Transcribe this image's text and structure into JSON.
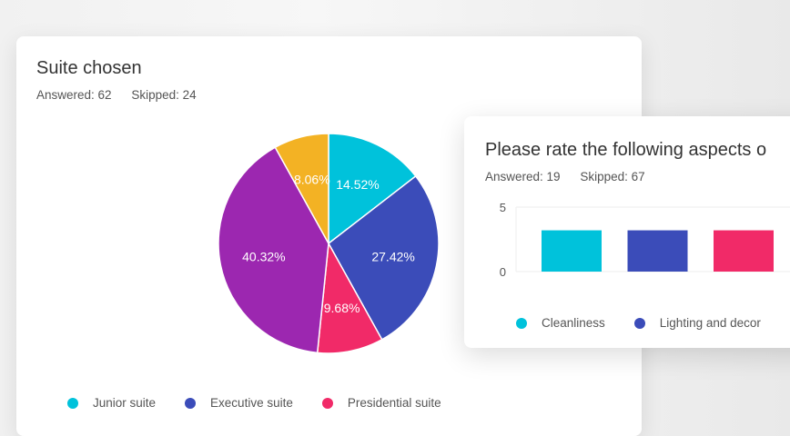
{
  "card1": {
    "title": "Suite chosen",
    "answered": "Answered: 62",
    "skipped": "Skipped: 24",
    "chart_data": {
      "type": "pie",
      "categories": [
        "Junior suite",
        "Executive suite",
        "Presidential suite",
        "",
        ""
      ],
      "values": [
        14.52,
        27.42,
        9.68,
        40.32,
        8.06
      ],
      "labels": [
        "14.52%",
        "27.42%",
        "9.68%",
        "40.32%",
        "8.06%"
      ],
      "colors": [
        "#00c2db",
        "#3b4cb9",
        "#f12a68",
        "#9c27b0",
        "#f3b224"
      ],
      "legend": [
        "Junior suite",
        "Executive suite",
        "Presidential suite"
      ],
      "legend_position": "bottom"
    }
  },
  "card2": {
    "title": "Please rate the following aspects o",
    "answered": "Answered: 19",
    "skipped": "Skipped: 67",
    "chart_data": {
      "type": "bar",
      "categories": [
        "Cleanliness",
        "Lighting and decor",
        ""
      ],
      "values": [
        3.2,
        3.2,
        3.2
      ],
      "colors": [
        "#00c2db",
        "#3b4cb9",
        "#f12a68"
      ],
      "ylim": [
        0,
        5
      ],
      "yticks": [
        "0",
        "5"
      ],
      "legend": [
        "Cleanliness",
        "Lighting and decor"
      ],
      "legend_position": "bottom",
      "grid": true
    }
  }
}
